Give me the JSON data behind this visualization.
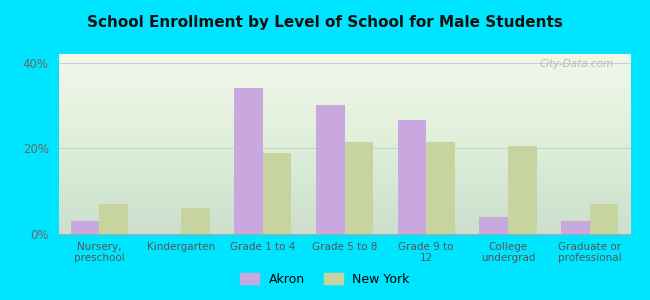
{
  "title": "School Enrollment by Level of School for Male Students",
  "categories": [
    "Nursery,\npreschool",
    "Kindergarten",
    "Grade 1 to 4",
    "Grade 5 to 8",
    "Grade 9 to\n12",
    "College\nundergrad",
    "Graduate or\nprofessional"
  ],
  "akron": [
    3.0,
    0.0,
    34.0,
    30.0,
    26.5,
    4.0,
    3.0
  ],
  "new_york": [
    7.0,
    6.0,
    19.0,
    21.5,
    21.5,
    20.5,
    7.0
  ],
  "akron_color": "#c9a8e0",
  "new_york_color": "#c8d4a0",
  "background_outer": "#00e5ff",
  "title_fontsize": 11,
  "yticks": [
    0,
    20,
    40
  ],
  "ylim": [
    0,
    42
  ],
  "legend_labels": [
    "Akron",
    "New York"
  ],
  "watermark": "City-Data.com"
}
